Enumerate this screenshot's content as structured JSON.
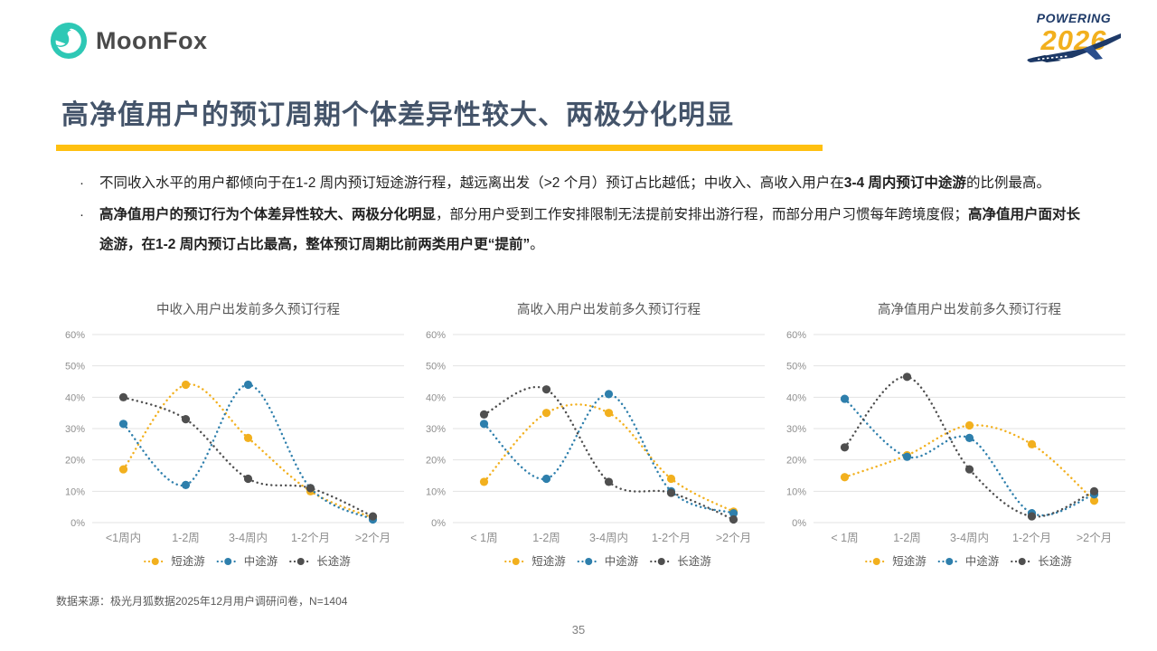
{
  "header": {
    "brand": "MoonFox",
    "event_top": "POWERING",
    "event_year": "2026"
  },
  "title": "高净值用户的预订周期个体差异性较大、两极分化明显",
  "bullets": [
    {
      "segments": [
        {
          "text": "不同收入水平的用户都倾向于在1-2 周内预订短途游行程，越远离出发（>2 个月）预订占比越低；中收入、高收入用户在",
          "bold": false
        },
        {
          "text": "3-4 周内预订",
          "bold": true
        },
        {
          "text": "",
          "bold": false
        },
        {
          "text": "中途游",
          "bold": true
        },
        {
          "text": "的比例最高。",
          "bold": false
        }
      ]
    },
    {
      "segments": [
        {
          "text": "高净值用户的预订行为个体差异性较大、两极分化明显",
          "bold": true
        },
        {
          "text": "，部分用户受到工作安排限制无法提前安排出游行程，而部分用户习惯每年跨境度假；",
          "bold": false
        },
        {
          "text": "高净值用户面对长途游，在1-2 周内预订占比最高，整体预订周期比前两类用户更“提前”",
          "bold": true
        },
        {
          "text": "。",
          "bold": false
        }
      ]
    }
  ],
  "colors": {
    "accent_yellow": "#FFC010",
    "title_navy": "#44546A",
    "brand_teal": "#2EC8B5",
    "event_navy": "#1E3A68",
    "series_short": "#F2B01E",
    "series_mid": "#2E7FAC",
    "series_long": "#4F4F4F",
    "axis_text": "#8F8F8F",
    "gridline": "#E3E3E3"
  },
  "chart_data": [
    {
      "type": "line",
      "title": "中收入用户出发前多久预订行程",
      "categories": [
        "<1周内",
        "1-2周",
        "3-4周内",
        "1-2个月",
        ">2个月"
      ],
      "series": [
        {
          "name": "短途游",
          "color": "#F2B01E",
          "values": [
            17,
            44,
            27,
            10,
            1.5
          ]
        },
        {
          "name": "中途游",
          "color": "#2E7FAC",
          "values": [
            31.5,
            12,
            44,
            11,
            1
          ]
        },
        {
          "name": "长途游",
          "color": "#4F4F4F",
          "values": [
            40,
            33,
            14,
            11,
            2
          ]
        }
      ],
      "ylim": [
        0,
        60
      ],
      "ytick_step": 10,
      "ytick_labels": [
        "0%",
        "10%",
        "20%",
        "30%",
        "40%",
        "50%",
        "60%"
      ],
      "grid": true,
      "line_style": "dotted",
      "legend_position": "bottom"
    },
    {
      "type": "line",
      "title": "高收入用户出发前多久预订行程",
      "categories": [
        "< 1周",
        "1-2周",
        "3-4周内",
        "1-2个月",
        ">2个月"
      ],
      "series": [
        {
          "name": "短途游",
          "color": "#F2B01E",
          "values": [
            13,
            35,
            35,
            14,
            3.5
          ]
        },
        {
          "name": "中途游",
          "color": "#2E7FAC",
          "values": [
            31.5,
            14,
            41,
            10,
            3
          ]
        },
        {
          "name": "长途游",
          "color": "#4F4F4F",
          "values": [
            34.5,
            42.5,
            13,
            9.5,
            1
          ]
        }
      ],
      "ylim": [
        0,
        60
      ],
      "ytick_step": 10,
      "ytick_labels": [
        "0%",
        "10%",
        "20%",
        "30%",
        "40%",
        "50%",
        "60%"
      ],
      "grid": true,
      "line_style": "dotted",
      "legend_position": "bottom"
    },
    {
      "type": "line",
      "title": "高净值用户出发前多久预订行程",
      "categories": [
        "< 1周",
        "1-2周",
        "3-4周内",
        "1-2个月",
        ">2个月"
      ],
      "series": [
        {
          "name": "短途游",
          "color": "#F2B01E",
          "values": [
            14.5,
            21.5,
            31,
            25,
            7
          ]
        },
        {
          "name": "中途游",
          "color": "#2E7FAC",
          "values": [
            39.5,
            21,
            27,
            3,
            9
          ]
        },
        {
          "name": "长途游",
          "color": "#4F4F4F",
          "values": [
            24,
            46.5,
            17,
            2,
            10
          ]
        }
      ],
      "ylim": [
        0,
        60
      ],
      "ytick_step": 10,
      "ytick_labels": [
        "0%",
        "10%",
        "20%",
        "30%",
        "40%",
        "50%",
        "60%"
      ],
      "grid": true,
      "line_style": "dotted",
      "legend_position": "bottom"
    }
  ],
  "footer": {
    "source": "数据来源：极光月狐数据2025年12月用户调研问卷，N=1404",
    "page": "35"
  }
}
